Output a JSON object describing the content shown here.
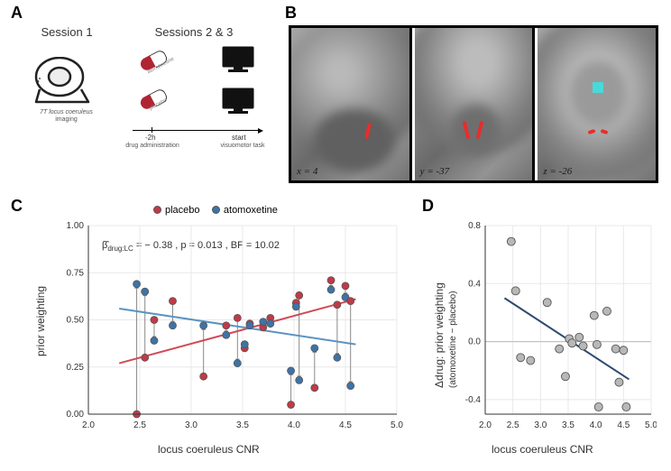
{
  "panels": {
    "A": "A",
    "B": "B",
    "C": "C",
    "D": "D"
  },
  "panelA": {
    "session1_label": "Session 1",
    "session23_label": "Sessions 2 & 3",
    "scanner_caption1": "7T locus coeruleus",
    "scanner_caption2": "imaging",
    "pill_top_label": "atomoxetine",
    "pill_bottom_label": "placebo",
    "time_tick": "-2h",
    "time_tick_caption": "drug administration",
    "start_label": "start",
    "start_caption": "visuomotor task"
  },
  "panelB": {
    "coord1_var": "x",
    "coord1_val": " = 4",
    "coord2_var": "y",
    "coord2_val": " = -37",
    "coord3_var": "z",
    "coord3_val": " = -26"
  },
  "panelC": {
    "type": "scatter",
    "legend": {
      "placebo": "placebo",
      "atomoxetine": "atomoxetine"
    },
    "colors": {
      "placebo": "#c13a47",
      "atomoxetine": "#3d73a8",
      "arrow": "#888888",
      "placebo_line": "#d04a56",
      "atomoxetine_line": "#5a93c4"
    },
    "stat_beta_label": "β̂",
    "stat_sub": "drug:LC",
    "stat_rest": " = − 0.38 , p = 0.013 , BF = 10.02",
    "xlabel": "locus coeruleus CNR",
    "ylabel": "prior weighting",
    "xlim": [
      2.0,
      5.0
    ],
    "xticks": [
      2.0,
      2.5,
      3.0,
      3.5,
      4.0,
      4.5,
      5.0
    ],
    "ylim": [
      0.0,
      1.0
    ],
    "yticks": [
      0.0,
      0.25,
      0.5,
      0.75,
      1.0
    ],
    "grid_color": "#e8e8e8",
    "background_color": "#ffffff",
    "point_radius": 4,
    "point_border": "#555555",
    "pairs": [
      {
        "x": 2.47,
        "placebo": 0.0,
        "atomox": 0.69
      },
      {
        "x": 2.55,
        "placebo": 0.3,
        "atomox": 0.65
      },
      {
        "x": 2.64,
        "placebo": 0.5,
        "atomox": 0.39
      },
      {
        "x": 2.82,
        "placebo": 0.6,
        "atomox": 0.47
      },
      {
        "x": 3.12,
        "placebo": 0.2,
        "atomox": 0.47
      },
      {
        "x": 3.34,
        "placebo": 0.47,
        "atomox": 0.42
      },
      {
        "x": 3.45,
        "placebo": 0.51,
        "atomox": 0.27
      },
      {
        "x": 3.52,
        "placebo": 0.35,
        "atomox": 0.37
      },
      {
        "x": 3.57,
        "placebo": 0.48,
        "atomox": 0.47
      },
      {
        "x": 3.7,
        "placebo": 0.46,
        "atomox": 0.49
      },
      {
        "x": 3.77,
        "placebo": 0.51,
        "atomox": 0.48
      },
      {
        "x": 3.97,
        "placebo": 0.05,
        "atomox": 0.23
      },
      {
        "x": 4.02,
        "placebo": 0.59,
        "atomox": 0.57
      },
      {
        "x": 4.05,
        "placebo": 0.63,
        "atomox": 0.18
      },
      {
        "x": 4.2,
        "placebo": 0.14,
        "atomox": 0.35
      },
      {
        "x": 4.36,
        "placebo": 0.71,
        "atomox": 0.66
      },
      {
        "x": 4.42,
        "placebo": 0.58,
        "atomox": 0.3
      },
      {
        "x": 4.5,
        "placebo": 0.68,
        "atomox": 0.62
      },
      {
        "x": 4.55,
        "placebo": 0.6,
        "atomox": 0.15
      }
    ],
    "placebo_line": {
      "x1": 2.3,
      "y1": 0.27,
      "x2": 4.6,
      "y2": 0.61
    },
    "atomox_line": {
      "x1": 2.3,
      "y1": 0.56,
      "x2": 4.6,
      "y2": 0.37
    }
  },
  "panelD": {
    "type": "scatter",
    "xlabel": "locus coeruleus CNR",
    "ylabel_line1": "Δdrug: prior weighting",
    "ylabel_line2": "(atomoxetine − placebo)",
    "xlim": [
      2.0,
      5.0
    ],
    "xticks": [
      2.0,
      2.5,
      3.0,
      3.5,
      4.0,
      4.5,
      5.0
    ],
    "ylim": [
      -0.5,
      0.8
    ],
    "yticks": [
      -0.4,
      0.0,
      0.4,
      0.8
    ],
    "grid_color": "#e8e8e8",
    "point_color": "#b8b8b8",
    "point_border": "#555555",
    "point_radius": 4.5,
    "line_color": "#2d4a6d",
    "zero_line_color": "#bababa",
    "points": [
      {
        "x": 2.47,
        "y": 0.69
      },
      {
        "x": 2.55,
        "y": 0.35
      },
      {
        "x": 2.64,
        "y": -0.11
      },
      {
        "x": 2.82,
        "y": -0.13
      },
      {
        "x": 3.12,
        "y": 0.27
      },
      {
        "x": 3.34,
        "y": -0.05
      },
      {
        "x": 3.45,
        "y": -0.24
      },
      {
        "x": 3.52,
        "y": 0.02
      },
      {
        "x": 3.57,
        "y": -0.01
      },
      {
        "x": 3.7,
        "y": 0.03
      },
      {
        "x": 3.77,
        "y": -0.03
      },
      {
        "x": 3.97,
        "y": 0.18
      },
      {
        "x": 4.02,
        "y": -0.02
      },
      {
        "x": 4.05,
        "y": -0.45
      },
      {
        "x": 4.2,
        "y": 0.21
      },
      {
        "x": 4.36,
        "y": -0.05
      },
      {
        "x": 4.42,
        "y": -0.28
      },
      {
        "x": 4.5,
        "y": -0.06
      },
      {
        "x": 4.55,
        "y": -0.45
      }
    ],
    "fit_line": {
      "x1": 2.35,
      "y1": 0.3,
      "x2": 4.6,
      "y2": -0.26
    }
  }
}
